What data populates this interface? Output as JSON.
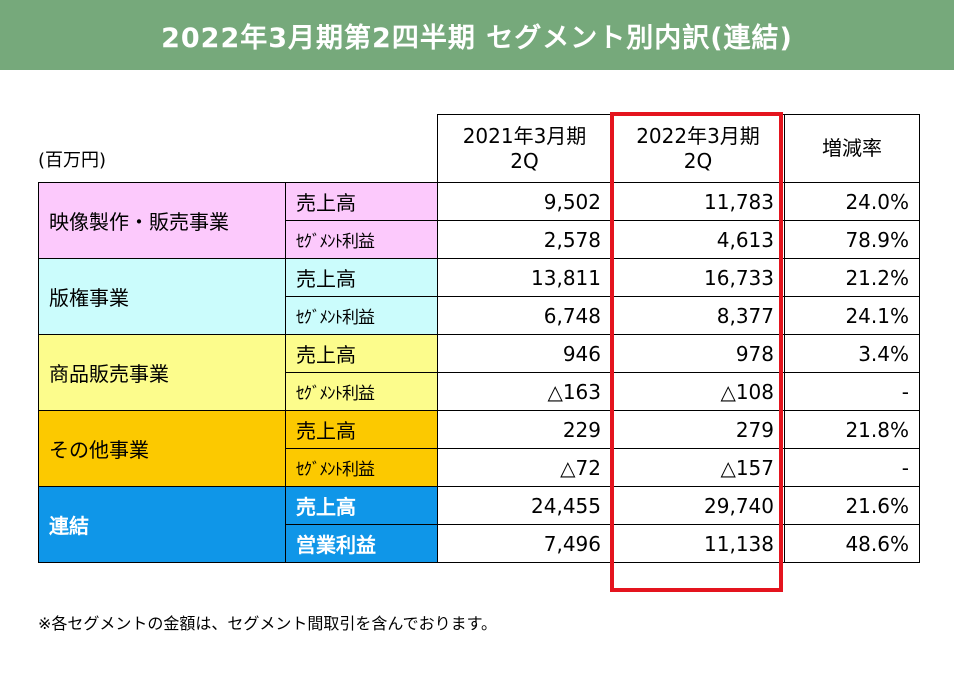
{
  "title": "2022年3月期第2四半期 セグメント別内訳(連結)",
  "unit": "(百万円)",
  "columns": {
    "prev": [
      "2021年3月期",
      "2Q"
    ],
    "curr": [
      "2022年3月期",
      "2Q"
    ],
    "change": "増減率"
  },
  "segments": [
    {
      "name": "映像製作・販売事業",
      "rows": [
        {
          "label": "売上高",
          "prev": "9,502",
          "curr": "11,783",
          "change": "24.0%"
        },
        {
          "label": "ｾｸﾞﾒﾝﾄ利益",
          "prev": "2,578",
          "curr": "4,613",
          "change": "78.9%"
        }
      ]
    },
    {
      "name": "版権事業",
      "rows": [
        {
          "label": "売上高",
          "prev": "13,811",
          "curr": "16,733",
          "change": "21.2%"
        },
        {
          "label": "ｾｸﾞﾒﾝﾄ利益",
          "prev": "6,748",
          "curr": "8,377",
          "change": "24.1%"
        }
      ]
    },
    {
      "name": "商品販売事業",
      "rows": [
        {
          "label": "売上高",
          "prev": "946",
          "curr": "978",
          "change": "3.4%"
        },
        {
          "label": "ｾｸﾞﾒﾝﾄ利益",
          "prev": "△163",
          "curr": "△108",
          "change": "-"
        }
      ]
    },
    {
      "name": "その他事業",
      "rows": [
        {
          "label": "売上高",
          "prev": "229",
          "curr": "279",
          "change": "21.8%"
        },
        {
          "label": "ｾｸﾞﾒﾝﾄ利益",
          "prev": "△72",
          "curr": "△157",
          "change": "-"
        }
      ]
    },
    {
      "name": "連結",
      "rows": [
        {
          "label": "売上高",
          "prev": "24,455",
          "curr": "29,740",
          "change": "21.6%"
        },
        {
          "label": "営業利益",
          "prev": "7,496",
          "curr": "11,138",
          "change": "48.6%"
        }
      ]
    }
  ],
  "footnote": "※各セグメントの金額は、セグメント間取引を含んでおります。",
  "colors": {
    "title_bg": "#76a97b",
    "eizo": "#fcc9fc",
    "hanken": "#cbfcfc",
    "shohin": "#fcfc8c",
    "other": "#fcc900",
    "renketsu": "#0f96e8",
    "highlight": "#e4141e"
  }
}
